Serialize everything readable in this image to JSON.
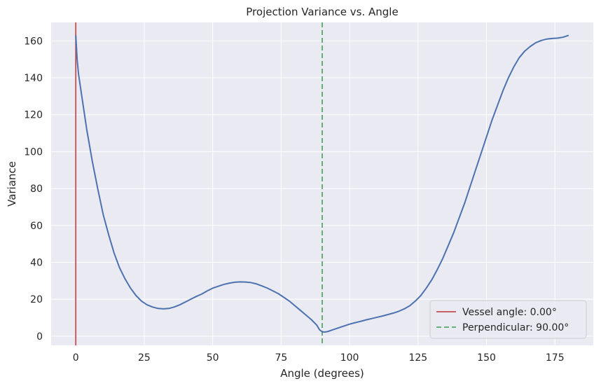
{
  "chart_data": {
    "type": "line",
    "title": "Projection Variance vs. Angle",
    "xlabel": "Angle (degrees)",
    "ylabel": "Variance",
    "xlim": [
      -9,
      189
    ],
    "ylim": [
      -5,
      170
    ],
    "xticks": [
      0,
      25,
      50,
      75,
      100,
      125,
      150,
      175
    ],
    "yticks": [
      0,
      20,
      40,
      60,
      80,
      100,
      120,
      140,
      160
    ],
    "grid": true,
    "legend_position": "bottom-right",
    "series": [
      {
        "name": "",
        "color": "#4c72b0",
        "style": "solid",
        "points": [
          [
            0,
            163
          ],
          [
            0.5,
            150
          ],
          [
            1,
            142
          ],
          [
            2,
            132
          ],
          [
            3,
            122
          ],
          [
            4,
            112
          ],
          [
            6,
            95
          ],
          [
            8,
            80
          ],
          [
            10,
            66
          ],
          [
            12,
            55
          ],
          [
            14,
            45
          ],
          [
            16,
            37
          ],
          [
            18,
            31
          ],
          [
            20,
            26
          ],
          [
            22,
            22
          ],
          [
            24,
            19
          ],
          [
            26,
            17
          ],
          [
            28,
            15.8
          ],
          [
            30,
            15
          ],
          [
            32,
            14.8
          ],
          [
            34,
            15
          ],
          [
            36,
            15.8
          ],
          [
            38,
            17
          ],
          [
            40,
            18.5
          ],
          [
            42,
            20
          ],
          [
            44,
            21.5
          ],
          [
            46,
            22.8
          ],
          [
            48,
            24.5
          ],
          [
            50,
            26
          ],
          [
            52,
            27
          ],
          [
            54,
            28
          ],
          [
            56,
            28.7
          ],
          [
            58,
            29.2
          ],
          [
            60,
            29.4
          ],
          [
            62,
            29.3
          ],
          [
            64,
            29
          ],
          [
            66,
            28.3
          ],
          [
            68,
            27.2
          ],
          [
            70,
            26
          ],
          [
            72,
            24.5
          ],
          [
            74,
            23
          ],
          [
            76,
            21
          ],
          [
            78,
            19
          ],
          [
            80,
            16.5
          ],
          [
            82,
            14
          ],
          [
            84,
            11.5
          ],
          [
            86,
            9
          ],
          [
            88,
            6
          ],
          [
            89,
            3.5
          ],
          [
            90,
            2.3
          ],
          [
            91,
            2.2
          ],
          [
            92,
            2.5
          ],
          [
            94,
            3.5
          ],
          [
            96,
            4.5
          ],
          [
            98,
            5.5
          ],
          [
            100,
            6.5
          ],
          [
            102,
            7.3
          ],
          [
            104,
            8
          ],
          [
            106,
            8.8
          ],
          [
            108,
            9.5
          ],
          [
            110,
            10.2
          ],
          [
            112,
            10.9
          ],
          [
            114,
            11.7
          ],
          [
            116,
            12.5
          ],
          [
            118,
            13.5
          ],
          [
            120,
            14.8
          ],
          [
            122,
            16.5
          ],
          [
            124,
            19
          ],
          [
            126,
            22
          ],
          [
            128,
            26
          ],
          [
            130,
            30.5
          ],
          [
            132,
            36
          ],
          [
            134,
            42
          ],
          [
            136,
            49
          ],
          [
            138,
            56
          ],
          [
            140,
            64
          ],
          [
            142,
            72
          ],
          [
            144,
            81
          ],
          [
            146,
            90
          ],
          [
            148,
            99
          ],
          [
            150,
            108
          ],
          [
            152,
            117
          ],
          [
            154,
            125
          ],
          [
            156,
            133
          ],
          [
            158,
            140
          ],
          [
            160,
            146
          ],
          [
            162,
            151
          ],
          [
            164,
            154.5
          ],
          [
            166,
            157
          ],
          [
            168,
            159
          ],
          [
            170,
            160.2
          ],
          [
            172,
            161
          ],
          [
            174,
            161.3
          ],
          [
            176,
            161.5
          ],
          [
            178,
            162
          ],
          [
            180,
            163
          ]
        ]
      },
      {
        "name": "Vessel angle: 0.00°",
        "color": "#c44e52",
        "style": "solid",
        "vline_x": 0
      },
      {
        "name": "Perpendicular: 90.00°",
        "color": "#55a868",
        "style": "dashed",
        "vline_x": 90
      }
    ]
  }
}
